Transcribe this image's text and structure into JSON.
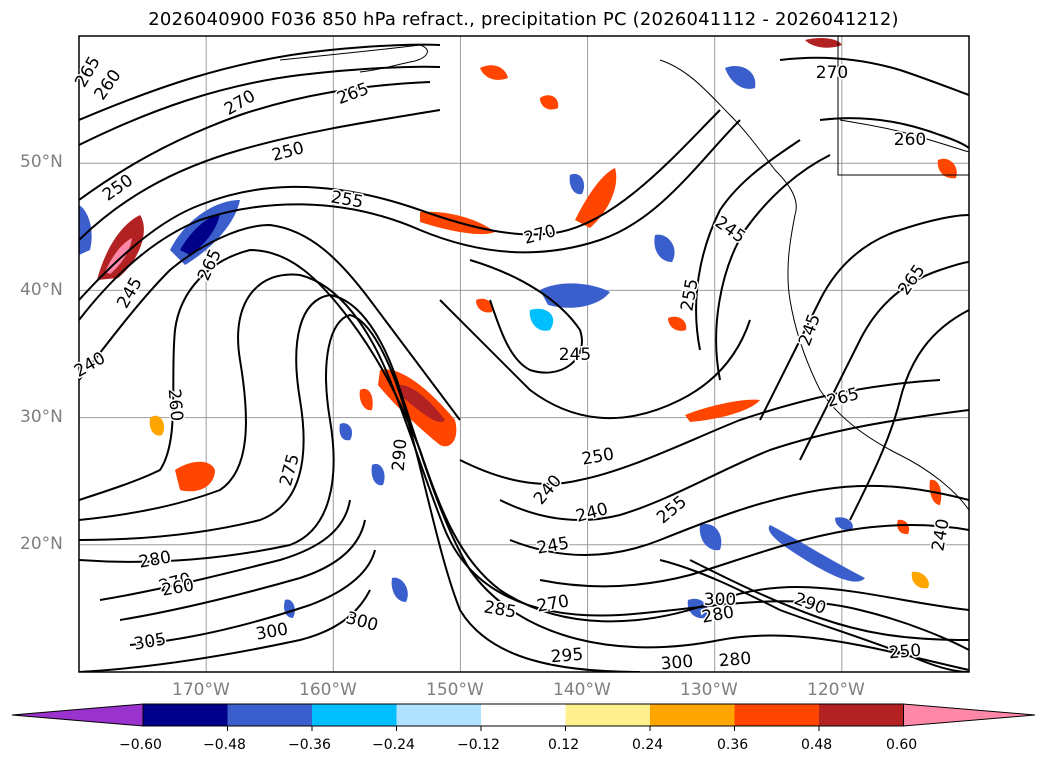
{
  "title": "2026040900 F036 850 hPa refract., precipitation PC (2026041112 - 2026041212)",
  "map": {
    "projection": "plate-carree",
    "lon_range": [
      -180,
      -110
    ],
    "lat_range": [
      10,
      60
    ],
    "gridlines": true,
    "lat_ticks": [
      "50°N",
      "40°N",
      "30°N",
      "20°N"
    ],
    "lon_ticks": [
      "170°W",
      "160°W",
      "150°W",
      "140°W",
      "130°W",
      "120°W"
    ],
    "coastlines": true,
    "contour_labels": [
      "265",
      "260",
      "265",
      "270",
      "250",
      "250",
      "270",
      "255",
      "245",
      "265",
      "240",
      "260",
      "275",
      "290",
      "245",
      "240",
      "250",
      "240",
      "245",
      "255",
      "245",
      "280",
      "270",
      "260",
      "280",
      "300",
      "305",
      "300",
      "285",
      "270",
      "295",
      "300",
      "280",
      "300",
      "290",
      "250",
      "265",
      "260",
      "270",
      "245",
      "240",
      "255",
      "265"
    ]
  },
  "colorbar": {
    "extend": "both",
    "tick_labels": [
      "−0.60",
      "−0.48",
      "−0.36",
      "−0.24",
      "−0.12",
      "0.12",
      "0.24",
      "0.36",
      "0.48",
      "0.60"
    ],
    "colors": [
      "#9a32cd",
      "#00008b",
      "#3a5fcd",
      "#00bfff",
      "#b0e2ff",
      "#ffffff",
      "#fff08f",
      "#ffa500",
      "#ff4500",
      "#b22222",
      "#ff88a8"
    ]
  }
}
